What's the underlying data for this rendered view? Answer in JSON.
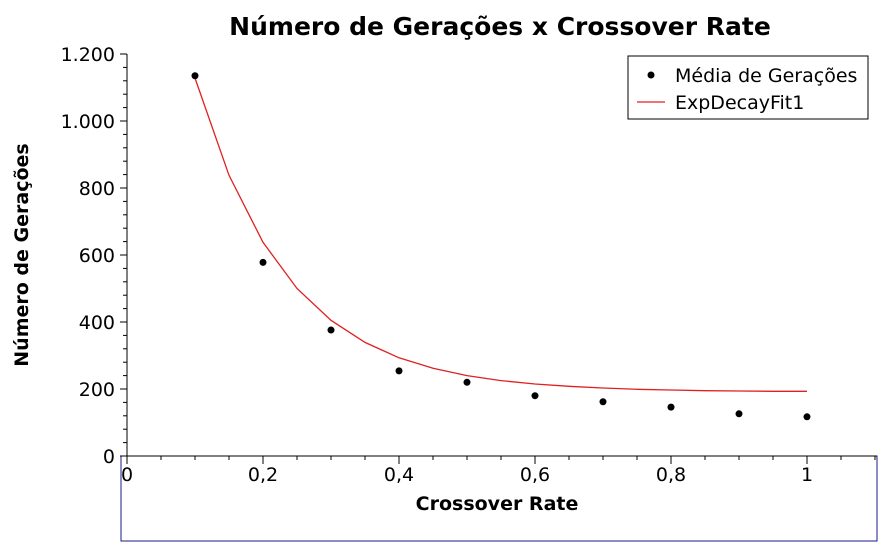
{
  "chart_data": {
    "type": "scatter",
    "title": "Número de Gerações x Crossover Rate",
    "xlabel": "Crossover Rate",
    "ylabel": "Número de Gerações",
    "xlim": [
      0,
      1.1
    ],
    "ylim": [
      0,
      1200
    ],
    "x_ticks": [
      0,
      0.2,
      0.4,
      0.6,
      0.8,
      1
    ],
    "x_tick_labels": [
      "0",
      "0,2",
      "0,4",
      "0,6",
      "0,8",
      "1"
    ],
    "y_ticks": [
      0,
      200,
      400,
      600,
      800,
      1000,
      1200
    ],
    "y_tick_labels": [
      "0",
      "200",
      "400",
      "600",
      "800",
      "1.000",
      "1.200"
    ],
    "grid": false,
    "legend_position": "top-right",
    "series": [
      {
        "name": "Média de Gerações",
        "kind": "scatter",
        "color": "#000000",
        "x": [
          0.1,
          0.2,
          0.3,
          0.4,
          0.5,
          0.6,
          0.7,
          0.8,
          0.9,
          1.0
        ],
        "y": [
          1135,
          578,
          376,
          254,
          220,
          180,
          162,
          146,
          126,
          117
        ]
      },
      {
        "name": "ExpDecayFit1",
        "kind": "line",
        "color": "#e02020",
        "x": [
          0.1,
          0.15,
          0.2,
          0.25,
          0.3,
          0.35,
          0.4,
          0.45,
          0.5,
          0.55,
          0.6,
          0.65,
          0.7,
          0.75,
          0.8,
          0.85,
          0.9,
          0.95,
          1.0
        ],
        "y": [
          1128,
          838,
          638,
          500,
          405,
          339,
          293,
          262,
          240,
          225,
          215,
          208,
          203,
          199,
          197,
          195,
          194,
          193,
          193
        ]
      }
    ]
  }
}
